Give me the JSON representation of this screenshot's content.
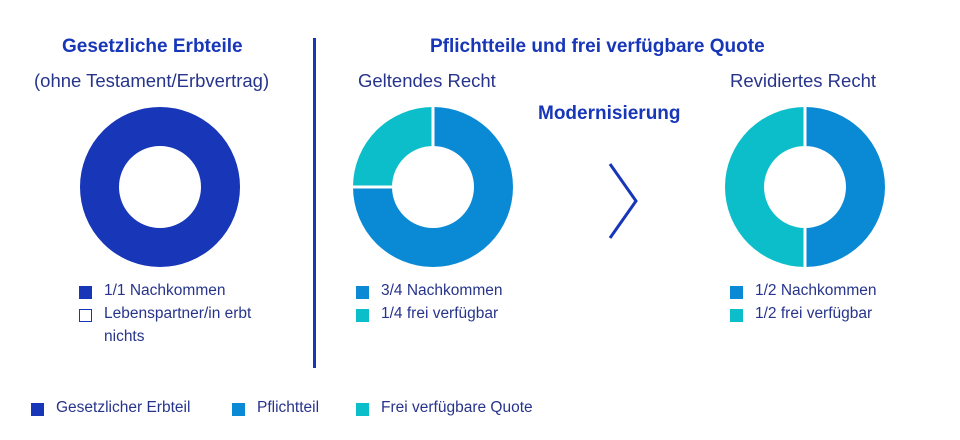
{
  "colors": {
    "navy": "#1736b8",
    "text": "#27348b",
    "blue": "#0a8ad4",
    "teal": "#0cbec9",
    "outline": "#1736b8"
  },
  "left_panel": {
    "title": "Gesetzliche Erbteile",
    "subtitle": "(ohne Testament/Erbvertrag)",
    "legend": [
      {
        "label": "1/1 Nachkommen",
        "swatch": "navy"
      },
      {
        "label": "Lebenspartner/in erbt",
        "label2": "nichts",
        "swatch": "outline"
      }
    ]
  },
  "right_header": {
    "title": "Pflichtteile und frei verfügbare Quote",
    "middle_label": "Modernisierung"
  },
  "middle_panel": {
    "subtitle": "Geltendes Recht",
    "legend": [
      {
        "label": "3/4 Nachkommen",
        "swatch": "blue"
      },
      {
        "label": "1/4 frei verfügbar",
        "swatch": "teal"
      }
    ]
  },
  "right_panel": {
    "subtitle": "Revidiertes Recht",
    "legend": [
      {
        "label": "1/2 Nachkommen",
        "swatch": "blue"
      },
      {
        "label": "1/2 frei verfügbar",
        "swatch": "teal"
      }
    ]
  },
  "bottom_legend": [
    {
      "label": "Gesetzlicher Erbteil",
      "swatch": "navy"
    },
    {
      "label": "Pflichtteil",
      "swatch": "blue"
    },
    {
      "label": "Frei verfügbare Quote",
      "swatch": "teal"
    }
  ],
  "chart_data": [
    {
      "type": "pie",
      "categories": [
        "Nachkommen"
      ],
      "values": [
        1
      ],
      "colors": [
        "#1736b8"
      ]
    },
    {
      "type": "pie",
      "categories": [
        "Nachkommen",
        "frei verfügbar"
      ],
      "values": [
        0.75,
        0.25
      ],
      "colors": [
        "#0a8ad4",
        "#0cbec9"
      ]
    },
    {
      "type": "pie",
      "categories": [
        "Nachkommen",
        "frei verfügbar"
      ],
      "values": [
        0.5,
        0.5
      ],
      "colors": [
        "#0a8ad4",
        "#0cbec9"
      ]
    }
  ]
}
